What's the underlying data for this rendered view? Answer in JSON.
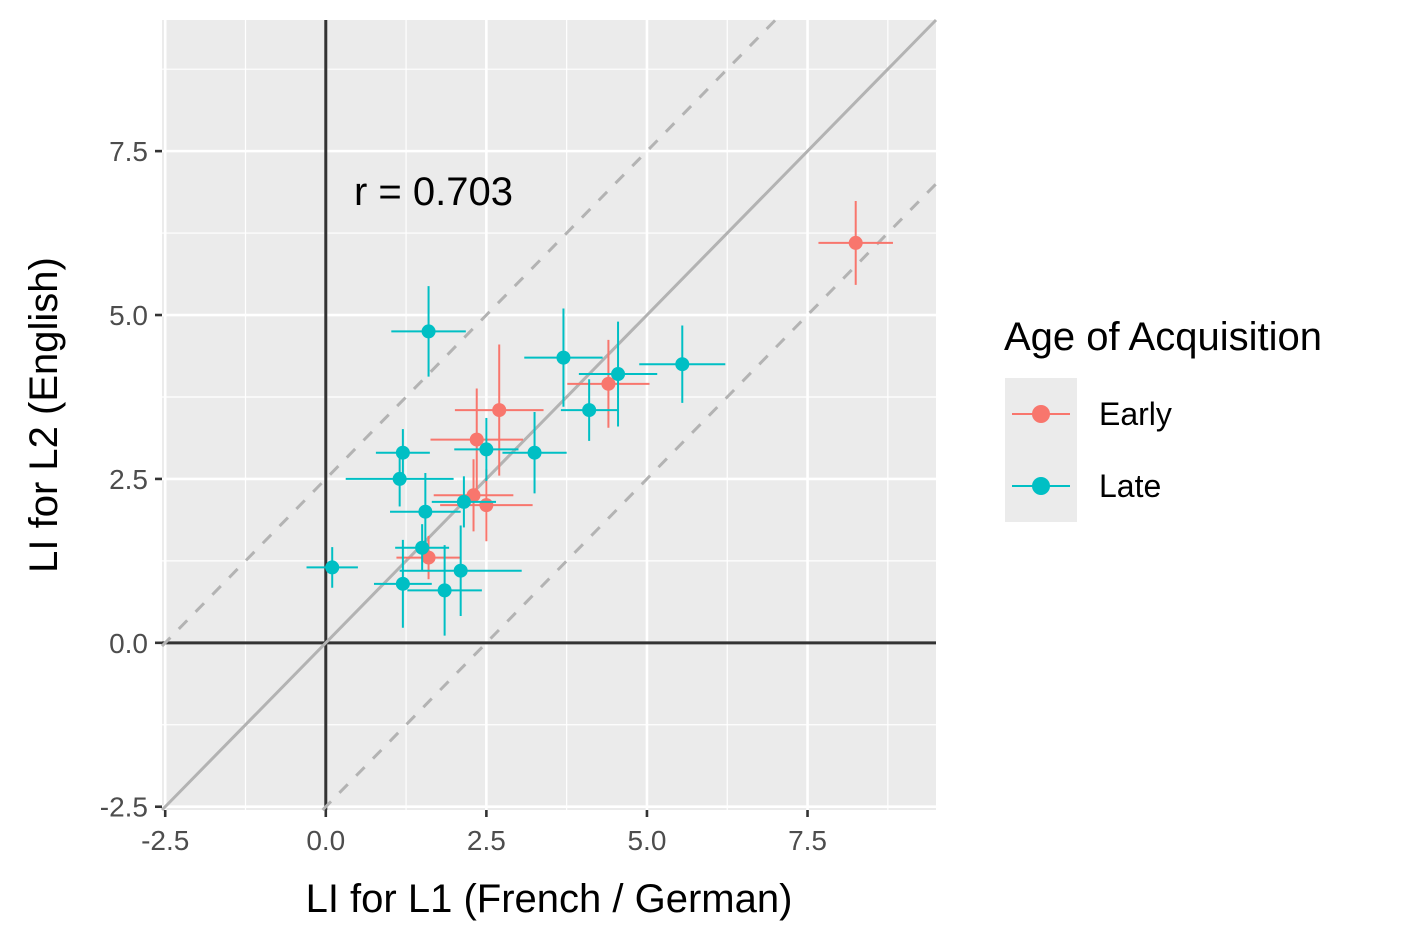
{
  "chart_data": {
    "type": "scatter",
    "xlabel": "LI for L1 (French / German)",
    "ylabel": "LI for L2 (English)",
    "xlim": [
      -2.55,
      9.5
    ],
    "ylim": [
      -2.55,
      9.5
    ],
    "x_ticks": [
      -2.5,
      0.0,
      2.5,
      5.0,
      7.5
    ],
    "y_ticks": [
      -2.5,
      0.0,
      2.5,
      5.0,
      7.5
    ],
    "x_tick_labels": [
      "-2.5",
      "0.0",
      "2.5",
      "5.0",
      "7.5"
    ],
    "y_tick_labels": [
      "-2.5",
      "0.0",
      "2.5",
      "5.0",
      "7.5"
    ],
    "grid": true,
    "reference_lines": {
      "identity": {
        "slope": 1,
        "intercept": 0,
        "style": "solid",
        "color": "#b3b3b3"
      },
      "bounds": [
        {
          "slope": 1,
          "intercept": 2.5,
          "style": "dashed",
          "color": "#b3b3b3"
        },
        {
          "slope": 1,
          "intercept": -2.5,
          "style": "dashed",
          "color": "#b3b3b3"
        }
      ],
      "zero_lines": {
        "color": "#333333"
      }
    },
    "annotation": {
      "text": "r =  0.703",
      "x": 0.5,
      "y": 7.0
    },
    "legend": {
      "title": "Age of Acquisition",
      "position": "right",
      "entries": [
        {
          "label": "Early",
          "color": "#F8766D"
        },
        {
          "label": "Late",
          "color": "#00BFC4"
        }
      ]
    },
    "series": [
      {
        "name": "Early",
        "color": "#F8766D",
        "points": [
          {
            "x": 8.25,
            "y": 6.1,
            "xerr": 0.58,
            "yerr": 0.64
          },
          {
            "x": 4.4,
            "y": 3.95,
            "xerr": 0.64,
            "yerr": 0.67
          },
          {
            "x": 2.7,
            "y": 3.55,
            "xerr": 0.69,
            "yerr": 1.0
          },
          {
            "x": 2.35,
            "y": 3.1,
            "xerr": 0.72,
            "yerr": 0.78
          },
          {
            "x": 2.3,
            "y": 2.25,
            "xerr": 0.62,
            "yerr": 0.55
          },
          {
            "x": 2.5,
            "y": 2.1,
            "xerr": 0.72,
            "yerr": 0.55
          },
          {
            "x": 1.6,
            "y": 1.3,
            "xerr": 0.5,
            "yerr": 0.33
          }
        ]
      },
      {
        "name": "Late",
        "color": "#00BFC4",
        "points": [
          {
            "x": 1.6,
            "y": 4.75,
            "xerr": 0.58,
            "yerr": 0.69
          },
          {
            "x": 3.7,
            "y": 4.35,
            "xerr": 0.61,
            "yerr": 0.75
          },
          {
            "x": 4.55,
            "y": 4.1,
            "xerr": 0.61,
            "yerr": 0.8
          },
          {
            "x": 5.55,
            "y": 4.25,
            "xerr": 0.67,
            "yerr": 0.59
          },
          {
            "x": 4.1,
            "y": 3.55,
            "xerr": 0.44,
            "yerr": 0.47
          },
          {
            "x": 3.25,
            "y": 2.9,
            "xerr": 0.5,
            "yerr": 0.62
          },
          {
            "x": 2.5,
            "y": 2.95,
            "xerr": 0.5,
            "yerr": 0.48
          },
          {
            "x": 1.2,
            "y": 2.9,
            "xerr": 0.42,
            "yerr": 0.36
          },
          {
            "x": 1.15,
            "y": 2.5,
            "xerr": 0.84,
            "yerr": 0.42
          },
          {
            "x": 2.15,
            "y": 2.15,
            "xerr": 0.5,
            "yerr": 0.39
          },
          {
            "x": 1.55,
            "y": 2.0,
            "xerr": 0.55,
            "yerr": 0.59
          },
          {
            "x": 1.5,
            "y": 1.45,
            "xerr": 0.42,
            "yerr": 0.36
          },
          {
            "x": 0.1,
            "y": 1.15,
            "xerr": 0.4,
            "yerr": 0.31
          },
          {
            "x": 2.1,
            "y": 1.1,
            "xerr": 0.95,
            "yerr": 0.69
          },
          {
            "x": 1.2,
            "y": 0.9,
            "xerr": 0.45,
            "yerr": 0.67
          },
          {
            "x": 1.85,
            "y": 0.8,
            "xerr": 0.58,
            "yerr": 0.69
          }
        ]
      }
    ]
  }
}
